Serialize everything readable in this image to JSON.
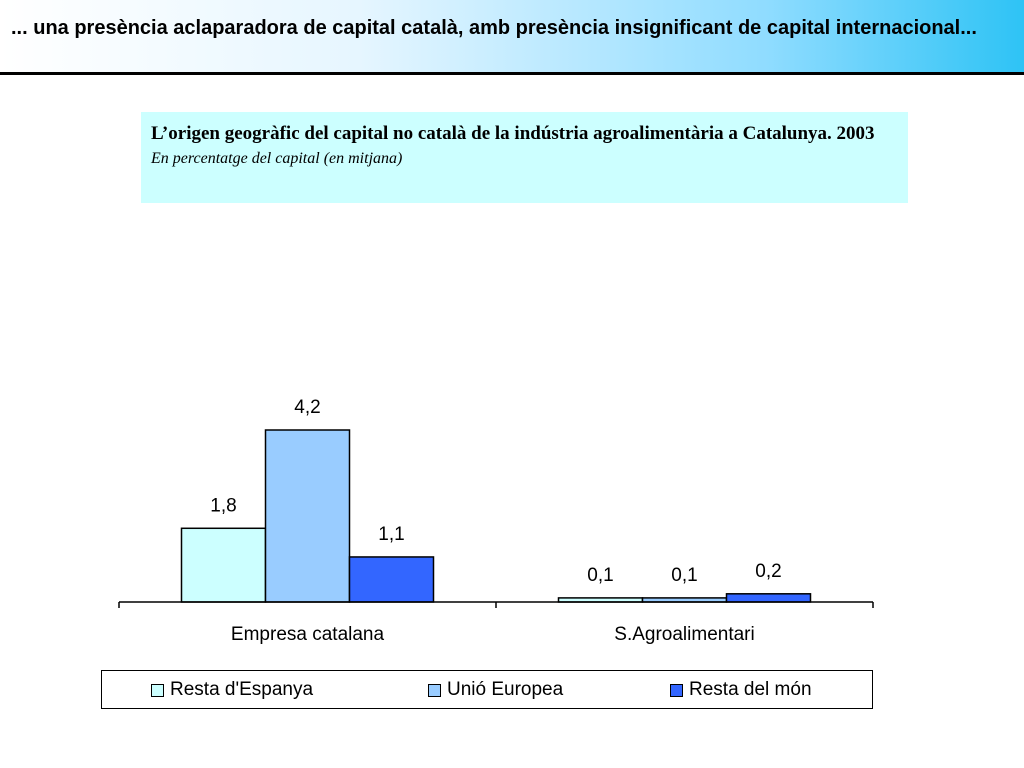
{
  "header": {
    "text": "... una presència aclaparadora de capital català, amb presència insignificant de capital internacional..."
  },
  "chart_data": {
    "type": "bar",
    "title": "L’origen geogràfic del capital no català de la indústria agroalimentària a Catalunya. 2003",
    "subtitle": "En percentatge del capital (en mitjana)",
    "categories": [
      "Empresa catalana",
      "S.Agroalimentari"
    ],
    "series": [
      {
        "name": "Resta d'Espanya",
        "values": [
          1.8,
          0.1
        ],
        "labels": [
          "1,8",
          "0,1"
        ],
        "color": "#ccffff"
      },
      {
        "name": "Unió Europea",
        "values": [
          4.2,
          0.1
        ],
        "labels": [
          "4,2",
          "0,1"
        ],
        "color": "#99ccff"
      },
      {
        "name": "Resta del món",
        "values": [
          1.1,
          0.2
        ],
        "labels": [
          "1,1",
          "0,2"
        ],
        "color": "#3366ff"
      }
    ],
    "ylim": [
      0,
      4.2
    ],
    "grid": false,
    "legend": "bottom"
  }
}
